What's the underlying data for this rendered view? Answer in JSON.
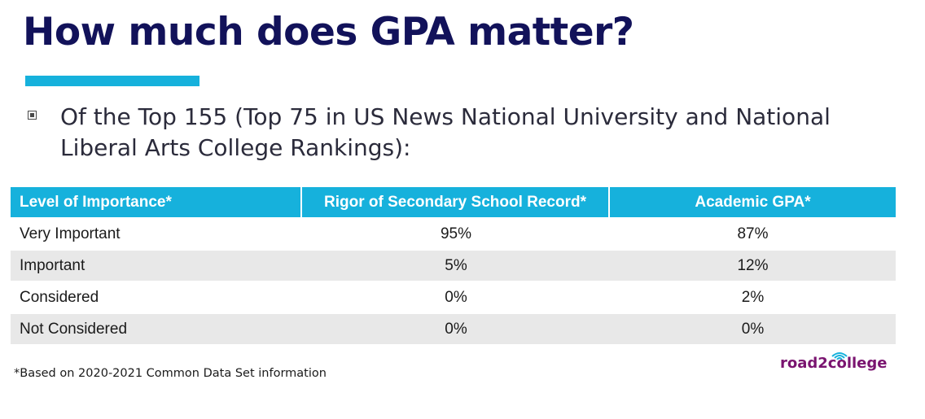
{
  "slide": {
    "title": "How much does GPA matter?",
    "bullet": "Of the Top 155 (Top 75 in US News National University and National Liberal Arts College Rankings):",
    "accent_color": "#16b1dc",
    "title_color": "#12125a"
  },
  "table": {
    "headers": [
      "Level of Importance*",
      "Rigor of Secondary School Record*",
      "Academic GPA*"
    ],
    "rows": [
      [
        "Very Important",
        "95%",
        "87%"
      ],
      [
        "Important",
        "5%",
        "12%"
      ],
      [
        "Considered",
        "0%",
        "2%"
      ],
      [
        "Not Considered",
        "0%",
        "0%"
      ]
    ]
  },
  "footnote": "*Based on 2020-2021 Common Data Set information",
  "logo": {
    "text": "road2college",
    "icon": "wifi-signal-icon",
    "color": "#7a1470"
  }
}
